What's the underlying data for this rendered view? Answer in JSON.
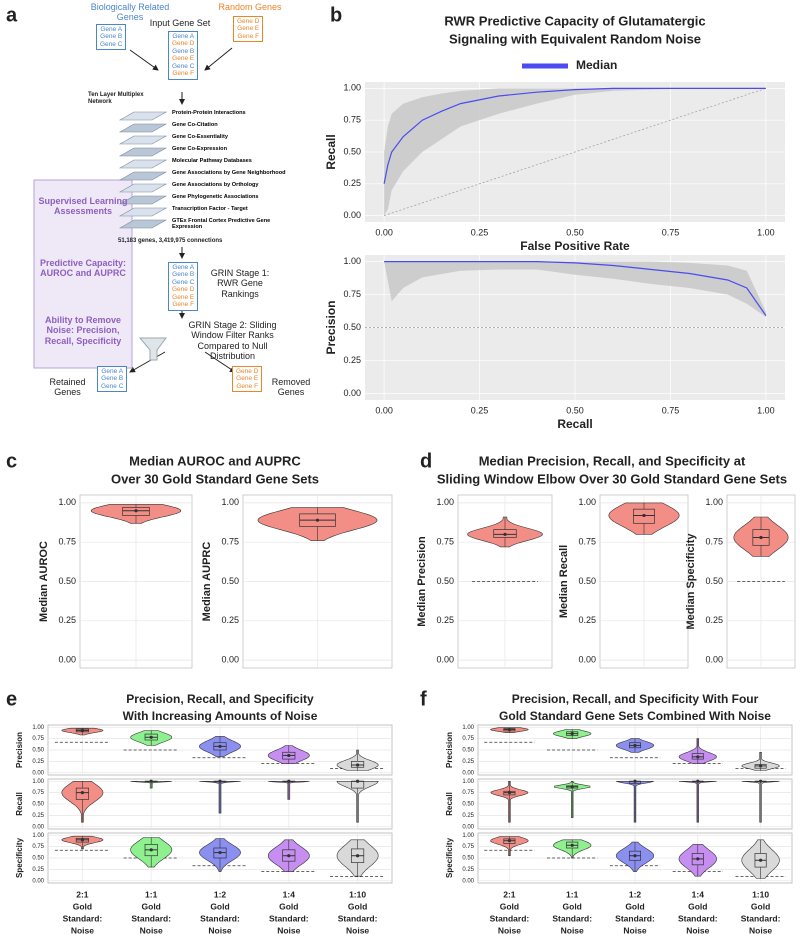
{
  "panel_labels": [
    "a",
    "b",
    "c",
    "d",
    "e",
    "f"
  ],
  "diagram": {
    "related": {
      "label": "Biologically Related Genes",
      "genes": [
        {
          "name": "Gene A",
          "color": "#4a86c8"
        },
        {
          "name": "Gene B",
          "color": "#4a86c8"
        },
        {
          "name": "Gene C",
          "color": "#4a86c8"
        }
      ]
    },
    "random": {
      "label": "Random Genes",
      "genes": [
        {
          "name": "Gene D",
          "color": "#e8862a"
        },
        {
          "name": "Gene E",
          "color": "#e8862a"
        },
        {
          "name": "Gene F",
          "color": "#e8862a"
        }
      ]
    },
    "input_set": {
      "label": "Input Gene Set",
      "genes": [
        {
          "name": "Gene A",
          "color": "#4a86c8"
        },
        {
          "name": "Gene D",
          "color": "#e8862a"
        },
        {
          "name": "Gene B",
          "color": "#4a86c8"
        },
        {
          "name": "Gene E",
          "color": "#e8862a"
        },
        {
          "name": "Gene C",
          "color": "#4a86c8"
        },
        {
          "name": "Gene F",
          "color": "#e8862a"
        }
      ]
    },
    "network": {
      "label": "Ten Layer Multiplex Network",
      "layers": [
        "Protein-Protein Interactions",
        "Gene Co-Citation",
        "Gene Co-Essentiality",
        "Gene Co-Expression",
        "Molecular Pathway Databases",
        "Gene Associations by Gene Neighborhood",
        "Gene Associations by Orthology",
        "Gene Phylogenetic Associations",
        "Transcription Factor - Target",
        "GTEx Frontal Cortex Predictive Gene Expression"
      ],
      "summary": "51,183 genes, 3,419,975 connections"
    },
    "stage1": {
      "label": "GRIN Stage 1: RWR Gene Rankings",
      "genes": [
        {
          "name": "Gene A",
          "color": "#4a86c8"
        },
        {
          "name": "Gene B",
          "color": "#4a86c8"
        },
        {
          "name": "Gene C",
          "color": "#4a86c8"
        },
        {
          "name": "Gene D",
          "color": "#e8862a"
        },
        {
          "name": "Gene E",
          "color": "#e8862a"
        },
        {
          "name": "Gene F",
          "color": "#e8862a"
        }
      ]
    },
    "stage2": {
      "label": "GRIN Stage 2: Sliding Window Filter Ranks Compared to Null Distribution"
    },
    "retained": {
      "label": "Retained Genes",
      "genes": [
        {
          "name": "Gene A",
          "color": "#4a86c8"
        },
        {
          "name": "Gene B",
          "color": "#4a86c8"
        },
        {
          "name": "Gene C",
          "color": "#4a86c8"
        }
      ]
    },
    "removed": {
      "label": "Removed Genes",
      "genes": [
        {
          "name": "Gene D",
          "color": "#e8862a"
        },
        {
          "name": "Gene E",
          "color": "#e8862a"
        },
        {
          "name": "Gene F",
          "color": "#e8862a"
        }
      ]
    },
    "assessments": [
      "Supervised Learning Assessments",
      "Predictive Capacity: AUROC and AUPRC",
      "Ability to Remove Noise: Precision, Recall, Specificity"
    ]
  },
  "chart_data": [
    {
      "type": "line_band",
      "title": [
        "RWR Predictive Capacity of Glutamatergic",
        "Signaling with Equivalent Random Noise"
      ],
      "xlabel": "False Positive Rate",
      "ylabel": "Recall",
      "diagonal": true,
      "x": [
        0,
        0.01,
        0.02,
        0.05,
        0.1,
        0.15,
        0.2,
        0.3,
        0.4,
        0.5,
        0.6,
        0.8,
        1
      ],
      "series": [
        {
          "name": "Median",
          "color": "#4b4bf0",
          "values": [
            0.25,
            0.4,
            0.5,
            0.62,
            0.75,
            0.82,
            0.88,
            0.94,
            0.97,
            0.99,
            1,
            1,
            1
          ]
        }
      ],
      "band": {
        "color": "#c8c8c8",
        "lower": [
          0,
          0.05,
          0.2,
          0.35,
          0.5,
          0.6,
          0.7,
          0.8,
          0.88,
          0.95,
          0.98,
          1,
          1
        ],
        "upper": [
          0.5,
          0.7,
          0.8,
          0.88,
          0.93,
          0.96,
          0.98,
          1,
          1,
          1,
          1,
          1,
          1
        ]
      },
      "xlim": [
        -0.05,
        1.05
      ],
      "ylim": [
        -0.05,
        1.05
      ],
      "xticks": [
        {
          "value": 0,
          "label": "0.00"
        },
        {
          "value": 0.25,
          "label": "0.25"
        },
        {
          "value": 0.5,
          "label": "0.50"
        },
        {
          "value": 0.75,
          "label": "0.75"
        },
        {
          "value": 1,
          "label": "1.00"
        }
      ],
      "yticks": [
        {
          "value": 0,
          "label": "0.00"
        },
        {
          "value": 0.25,
          "label": "0.25"
        },
        {
          "value": 0.5,
          "label": "0.50"
        },
        {
          "value": 0.75,
          "label": "0.75"
        },
        {
          "value": 1,
          "label": "1.00"
        }
      ],
      "grid": true,
      "legend": "top"
    },
    {
      "type": "line_band",
      "xlabel": "Recall",
      "ylabel": "Precision",
      "baseline": 0.5,
      "x": [
        0,
        0.02,
        0.05,
        0.1,
        0.2,
        0.3,
        0.4,
        0.5,
        0.6,
        0.7,
        0.8,
        0.9,
        0.95,
        1
      ],
      "series": [
        {
          "color": "#4b4bf0",
          "values": [
            1,
            1,
            1,
            1,
            1,
            1,
            1,
            0.99,
            0.97,
            0.94,
            0.91,
            0.86,
            0.8,
            0.59
          ]
        }
      ],
      "band": {
        "color": "#c8c8c8",
        "lower": [
          1,
          0.7,
          0.8,
          0.88,
          0.93,
          0.94,
          0.94,
          0.9,
          0.87,
          0.83,
          0.8,
          0.75,
          0.68,
          0.58
        ],
        "upper": [
          1,
          1,
          1,
          1,
          1,
          1,
          1,
          1,
          1,
          1,
          0.99,
          0.97,
          0.93,
          0.62
        ]
      },
      "xlim": [
        -0.05,
        1.05
      ],
      "ylim": [
        -0.05,
        1.05
      ],
      "xticks": [
        {
          "value": 0,
          "label": "0.00"
        },
        {
          "value": 0.25,
          "label": "0.25"
        },
        {
          "value": 0.5,
          "label": "0.50"
        },
        {
          "value": 0.75,
          "label": "0.75"
        },
        {
          "value": 1,
          "label": "1.00"
        }
      ],
      "yticks": [
        {
          "value": 0,
          "label": "0.00"
        },
        {
          "value": 0.25,
          "label": "0.25"
        },
        {
          "value": 0.5,
          "label": "0.50"
        },
        {
          "value": 0.75,
          "label": "0.75"
        },
        {
          "value": 1,
          "label": "1.00"
        }
      ],
      "grid": true
    },
    {
      "type": "violin",
      "title": [
        "Median AUROC and AUPRC",
        "Over 30 Gold Standard Gene Sets"
      ],
      "color": "#f28e86",
      "ylim": [
        -0.05,
        1.05
      ],
      "yticks": [
        {
          "value": 0,
          "label": "0.00"
        },
        {
          "value": 0.25,
          "label": "0.25"
        },
        {
          "value": 0.5,
          "label": "0.50"
        },
        {
          "value": 0.75,
          "label": "0.75"
        },
        {
          "value": 1,
          "label": "1.00"
        }
      ],
      "panels": [
        {
          "ylabel": "Median AUROC",
          "stats": {
            "min": 0.87,
            "q1": 0.92,
            "median": 0.95,
            "q3": 0.97,
            "max": 0.99
          }
        },
        {
          "ylabel": "Median AUPRC",
          "stats": {
            "min": 0.76,
            "q1": 0.85,
            "median": 0.89,
            "q3": 0.93,
            "max": 0.97
          }
        }
      ]
    },
    {
      "type": "violin",
      "title": [
        "Median Precision, Recall, and Specificity at",
        "Sliding Window Elbow Over 30 Gold Standard Gene Sets"
      ],
      "color": "#f28e86",
      "ylim": [
        -0.05,
        1.05
      ],
      "yticks": [
        {
          "value": 0,
          "label": "0.00"
        },
        {
          "value": 0.25,
          "label": "0.25"
        },
        {
          "value": 0.5,
          "label": "0.50"
        },
        {
          "value": 0.75,
          "label": "0.75"
        },
        {
          "value": 1,
          "label": "1.00"
        }
      ],
      "panels": [
        {
          "ylabel": "Median Precision",
          "baseline": 0.5,
          "stats": {
            "min": 0.72,
            "q1": 0.78,
            "median": 0.8,
            "q3": 0.83,
            "max": 0.91
          }
        },
        {
          "ylabel": "Median Recall",
          "stats": {
            "min": 0.8,
            "q1": 0.87,
            "median": 0.92,
            "q3": 0.96,
            "max": 1
          }
        },
        {
          "ylabel": "Median Specificity",
          "baseline": 0.5,
          "stats": {
            "min": 0.66,
            "q1": 0.73,
            "median": 0.78,
            "q3": 0.83,
            "max": 0.91
          }
        }
      ]
    },
    {
      "type": "violin_grid",
      "title": [
        "Precision, Recall, and Specificity",
        "With Increasing Amounts of Noise"
      ],
      "categories": [
        [
          "2:1",
          "Gold",
          "Standard:",
          "Noise"
        ],
        [
          "1:1",
          "Gold",
          "Standard:",
          "Noise"
        ],
        [
          "1:2",
          "Gold",
          "Standard:",
          "Noise"
        ],
        [
          "1:4",
          "Gold",
          "Standard:",
          "Noise"
        ],
        [
          "1:10",
          "Gold",
          "Standard:",
          "Noise"
        ]
      ],
      "colors": [
        "#f28e86",
        "#8ef08e",
        "#8b8ff0",
        "#c58ef0",
        "#d9d9d9"
      ],
      "ylim": [
        -0.05,
        1.05
      ],
      "yticks": [
        {
          "value": 0,
          "label": "0.00"
        },
        {
          "value": 0.25,
          "label": "0.25"
        },
        {
          "value": 0.5,
          "label": "0.50"
        },
        {
          "value": 0.75,
          "label": "0.75"
        },
        {
          "value": 1,
          "label": "1.00"
        }
      ],
      "rows": [
        {
          "ylabel": "Precision",
          "baselines": [
            0.67,
            0.5,
            0.33,
            0.2,
            0.09
          ],
          "stats": [
            {
              "min": 0.83,
              "q1": 0.9,
              "median": 0.93,
              "q3": 0.96,
              "max": 0.98
            },
            {
              "min": 0.6,
              "q1": 0.72,
              "median": 0.78,
              "q3": 0.85,
              "max": 0.93
            },
            {
              "min": 0.35,
              "q1": 0.5,
              "median": 0.58,
              "q3": 0.66,
              "max": 0.8
            },
            {
              "min": 0.2,
              "q1": 0.3,
              "median": 0.38,
              "q3": 0.45,
              "max": 0.6
            },
            {
              "min": 0.05,
              "q1": 0.12,
              "median": 0.17,
              "q3": 0.25,
              "max": 0.5
            }
          ]
        },
        {
          "ylabel": "Recall",
          "stats": [
            {
              "min": 0.1,
              "q1": 0.6,
              "median": 0.75,
              "q3": 0.85,
              "max": 1
            },
            {
              "min": 0.85,
              "q1": 1,
              "median": 1,
              "q3": 1,
              "max": 1
            },
            {
              "min": 0.3,
              "q1": 1,
              "median": 1,
              "q3": 1,
              "max": 1
            },
            {
              "min": 0.6,
              "q1": 1,
              "median": 1,
              "q3": 1,
              "max": 1
            },
            {
              "min": 0.1,
              "q1": 0.85,
              "median": 1,
              "q3": 1,
              "max": 1
            }
          ]
        },
        {
          "ylabel": "Specificity",
          "baselines": [
            0.67,
            0.5,
            0.33,
            0.2,
            0.09
          ],
          "stats": [
            {
              "min": 0.7,
              "q1": 0.85,
              "median": 0.9,
              "q3": 0.93,
              "max": 0.98
            },
            {
              "min": 0.3,
              "q1": 0.55,
              "median": 0.68,
              "q3": 0.8,
              "max": 0.95
            },
            {
              "min": 0.2,
              "q1": 0.5,
              "median": 0.62,
              "q3": 0.72,
              "max": 0.93
            },
            {
              "min": 0.2,
              "q1": 0.43,
              "median": 0.55,
              "q3": 0.68,
              "max": 0.9
            },
            {
              "min": 0.1,
              "q1": 0.4,
              "median": 0.55,
              "q3": 0.7,
              "max": 0.9
            }
          ]
        }
      ]
    },
    {
      "type": "violin_grid",
      "title": [
        "Precision, Recall, and Specificity With Four",
        "Gold Standard Gene Sets Combined With Noise"
      ],
      "categories": [
        [
          "2:1",
          "Gold",
          "Standard:",
          "Noise"
        ],
        [
          "1:1",
          "Gold",
          "Standard:",
          "Noise"
        ],
        [
          "1:2",
          "Gold",
          "Standard:",
          "Noise"
        ],
        [
          "1:4",
          "Gold",
          "Standard:",
          "Noise"
        ],
        [
          "1:10",
          "Gold",
          "Standard:",
          "Noise"
        ]
      ],
      "colors": [
        "#f28e86",
        "#8ef08e",
        "#8b8ff0",
        "#c58ef0",
        "#d9d9d9"
      ],
      "ylim": [
        -0.05,
        1.05
      ],
      "yticks": [
        {
          "value": 0,
          "label": "0.00"
        },
        {
          "value": 0.25,
          "label": "0.25"
        },
        {
          "value": 0.5,
          "label": "0.50"
        },
        {
          "value": 0.75,
          "label": "0.75"
        },
        {
          "value": 1,
          "label": "1.00"
        }
      ],
      "rows": [
        {
          "ylabel": "Precision",
          "baselines": [
            0.67,
            0.5,
            0.33,
            0.2,
            0.09
          ],
          "stats": [
            {
              "min": 0.88,
              "q1": 0.92,
              "median": 0.95,
              "q3": 0.97,
              "max": 0.99
            },
            {
              "min": 0.75,
              "q1": 0.82,
              "median": 0.86,
              "q3": 0.9,
              "max": 0.95
            },
            {
              "min": 0.45,
              "q1": 0.55,
              "median": 0.6,
              "q3": 0.66,
              "max": 0.75
            },
            {
              "min": 0.2,
              "q1": 0.3,
              "median": 0.35,
              "q3": 0.42,
              "max": 0.75
            },
            {
              "min": 0.05,
              "q1": 0.1,
              "median": 0.15,
              "q3": 0.18,
              "max": 0.45
            }
          ]
        },
        {
          "ylabel": "Recall",
          "stats": [
            {
              "min": 0.1,
              "q1": 0.7,
              "median": 0.75,
              "q3": 0.78,
              "max": 1
            },
            {
              "min": 0.2,
              "q1": 0.85,
              "median": 0.88,
              "q3": 0.9,
              "max": 1
            },
            {
              "min": 0.1,
              "q1": 0.95,
              "median": 1,
              "q3": 1,
              "max": 1
            },
            {
              "min": 0.1,
              "q1": 1,
              "median": 1,
              "q3": 1,
              "max": 1
            },
            {
              "min": 0.1,
              "q1": 1,
              "median": 1,
              "q3": 1,
              "max": 1
            }
          ]
        },
        {
          "ylabel": "Specificity",
          "baselines": [
            0.67,
            0.5,
            0.33,
            0.2,
            0.09
          ],
          "stats": [
            {
              "min": 0.55,
              "q1": 0.82,
              "median": 0.88,
              "q3": 0.92,
              "max": 0.97
            },
            {
              "min": 0.5,
              "q1": 0.72,
              "median": 0.78,
              "q3": 0.85,
              "max": 0.9
            },
            {
              "min": 0.2,
              "q1": 0.45,
              "median": 0.55,
              "q3": 0.65,
              "max": 0.85
            },
            {
              "min": 0.1,
              "q1": 0.35,
              "median": 0.48,
              "q3": 0.6,
              "max": 0.8
            },
            {
              "min": 0.05,
              "q1": 0.3,
              "median": 0.45,
              "q3": 0.6,
              "max": 0.9
            }
          ]
        }
      ]
    }
  ]
}
